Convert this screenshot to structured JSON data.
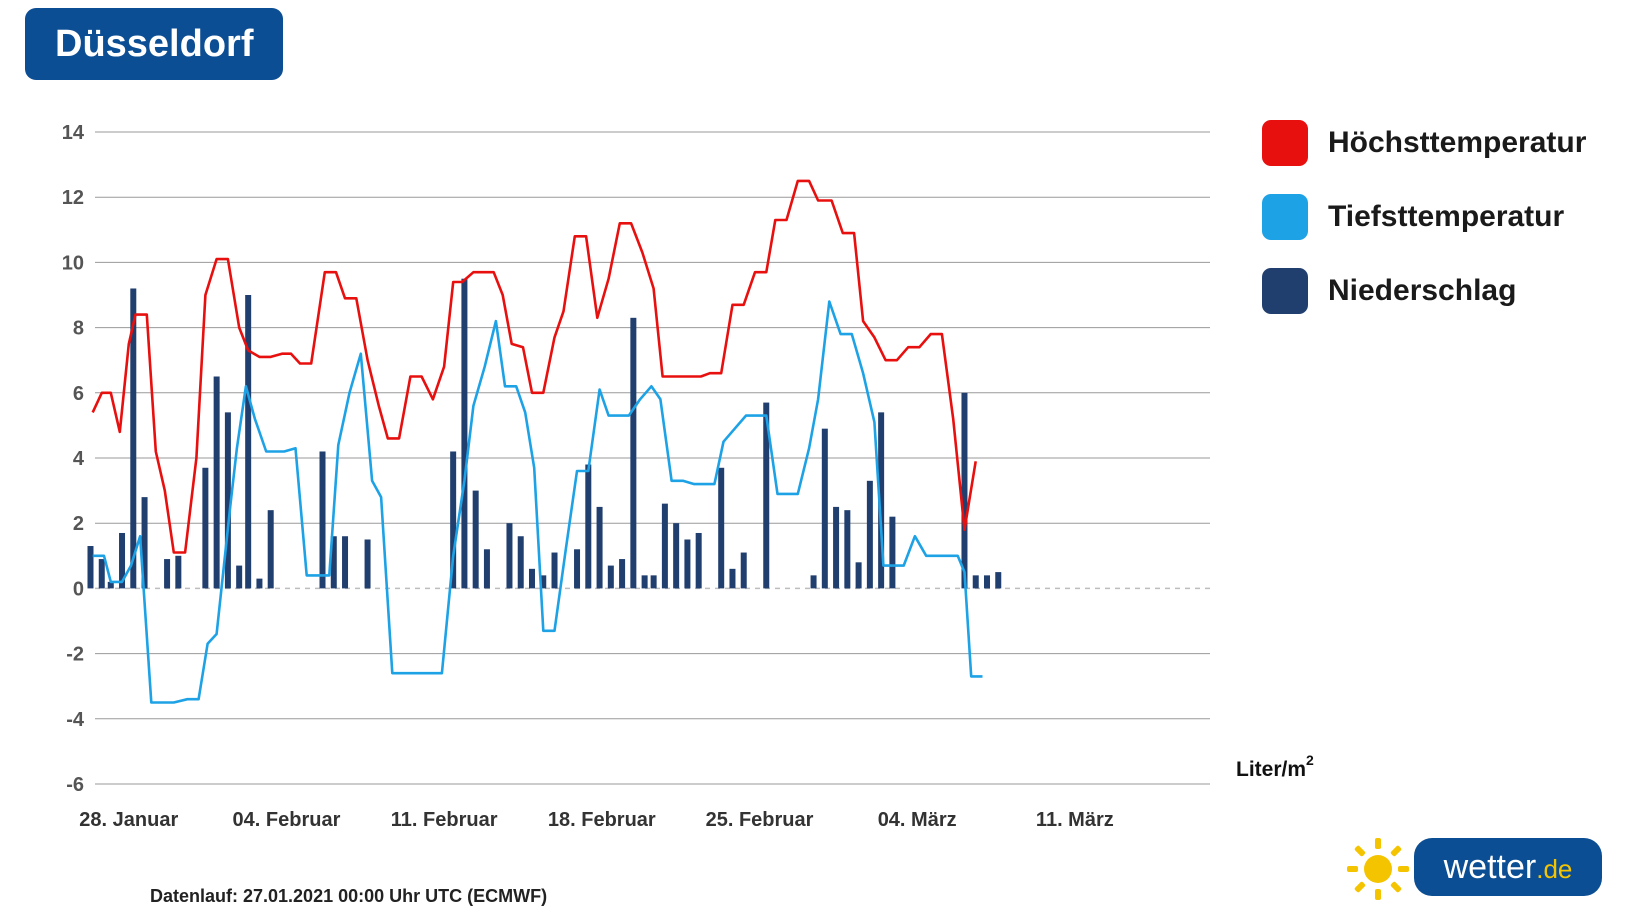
{
  "header": {
    "city": "Düsseldorf"
  },
  "legend": {
    "items": [
      {
        "label": "Höchsttemperatur",
        "color": "#e8100f"
      },
      {
        "label": "Tiefsttemperatur",
        "color": "#1ea2e6"
      },
      {
        "label": "Niederschlag",
        "color": "#213f6e"
      }
    ]
  },
  "footer": {
    "datenlauf": "Datenlauf: 27.01.2021 00:00 Uhr UTC (ECMWF)"
  },
  "logo": {
    "name": "wetter",
    "tld": ".de",
    "icon": "sun-icon"
  },
  "chart_data": {
    "type": "line",
    "y_ticks": [
      14,
      12,
      10,
      8,
      6,
      4,
      2,
      0,
      -2,
      -4,
      -6
    ],
    "ylim": [
      -6,
      14
    ],
    "xlim": [
      -1.5,
      48
    ],
    "x_ticks": [
      {
        "x": 0,
        "label": "28. Januar"
      },
      {
        "x": 7,
        "label": "04. Februar"
      },
      {
        "x": 14,
        "label": "11. Februar"
      },
      {
        "x": 21,
        "label": "18. Februar"
      },
      {
        "x": 28,
        "label": "25. Februar"
      },
      {
        "x": 35,
        "label": "04. März"
      },
      {
        "x": 42,
        "label": "11. März"
      }
    ],
    "precip_unit": "Liter/m",
    "precip_unit_sup": "2",
    "grid": true,
    "series": [
      {
        "name": "Höchsttemperatur",
        "color": "#e8100f",
        "points": [
          [
            -1.6,
            5.4
          ],
          [
            -1.2,
            6.0
          ],
          [
            -0.8,
            6.0
          ],
          [
            -0.4,
            4.8
          ],
          [
            0,
            7.5
          ],
          [
            0.3,
            8.4
          ],
          [
            0.8,
            8.4
          ],
          [
            1.2,
            4.2
          ],
          [
            1.6,
            3.0
          ],
          [
            2.0,
            1.1
          ],
          [
            2.5,
            1.1
          ],
          [
            3.0,
            4.0
          ],
          [
            3.4,
            9.0
          ],
          [
            3.9,
            10.1
          ],
          [
            4.4,
            10.1
          ],
          [
            4.9,
            8.0
          ],
          [
            5.3,
            7.3
          ],
          [
            5.8,
            7.1
          ],
          [
            6.3,
            7.1
          ],
          [
            6.8,
            7.2
          ],
          [
            7.2,
            7.2
          ],
          [
            7.6,
            6.9
          ],
          [
            8.1,
            6.9
          ],
          [
            8.7,
            9.7
          ],
          [
            9.2,
            9.7
          ],
          [
            9.6,
            8.9
          ],
          [
            10.1,
            8.9
          ],
          [
            10.6,
            7.0
          ],
          [
            11.1,
            5.6
          ],
          [
            11.5,
            4.6
          ],
          [
            12.0,
            4.6
          ],
          [
            12.5,
            6.5
          ],
          [
            13.0,
            6.5
          ],
          [
            13.5,
            5.8
          ],
          [
            14.0,
            6.8
          ],
          [
            14.4,
            9.4
          ],
          [
            14.8,
            9.4
          ],
          [
            15.3,
            9.7
          ],
          [
            16.2,
            9.7
          ],
          [
            16.6,
            9.0
          ],
          [
            17.0,
            7.5
          ],
          [
            17.5,
            7.4
          ],
          [
            17.9,
            6.0
          ],
          [
            18.4,
            6.0
          ],
          [
            18.9,
            7.7
          ],
          [
            19.3,
            8.5
          ],
          [
            19.8,
            10.8
          ],
          [
            20.3,
            10.8
          ],
          [
            20.8,
            8.3
          ],
          [
            21.3,
            9.5
          ],
          [
            21.8,
            11.2
          ],
          [
            22.3,
            11.2
          ],
          [
            22.8,
            10.3
          ],
          [
            23.3,
            9.2
          ],
          [
            23.7,
            6.5
          ],
          [
            24.1,
            6.5
          ],
          [
            25.4,
            6.5
          ],
          [
            25.8,
            6.6
          ],
          [
            26.3,
            6.6
          ],
          [
            26.8,
            8.7
          ],
          [
            27.3,
            8.7
          ],
          [
            27.8,
            9.7
          ],
          [
            28.3,
            9.7
          ],
          [
            28.7,
            11.3
          ],
          [
            29.2,
            11.3
          ],
          [
            29.7,
            12.5
          ],
          [
            30.2,
            12.5
          ],
          [
            30.6,
            11.9
          ],
          [
            31.2,
            11.9
          ],
          [
            31.7,
            10.9
          ],
          [
            32.2,
            10.9
          ],
          [
            32.6,
            8.2
          ],
          [
            33.1,
            7.7
          ],
          [
            33.6,
            7.0
          ],
          [
            34.1,
            7.0
          ],
          [
            34.6,
            7.4
          ],
          [
            35.1,
            7.4
          ],
          [
            35.6,
            7.8
          ],
          [
            36.1,
            7.8
          ],
          [
            36.6,
            5.2
          ],
          [
            37.1,
            1.8
          ],
          [
            37.6,
            3.9
          ]
        ]
      },
      {
        "name": "Tiefsttemperatur",
        "color": "#1ea2e6",
        "points": [
          [
            -1.6,
            1.0
          ],
          [
            -1.1,
            1.0
          ],
          [
            -0.8,
            0.2
          ],
          [
            -0.3,
            0.2
          ],
          [
            0.1,
            0.7
          ],
          [
            0.5,
            1.6
          ],
          [
            1.0,
            -3.5
          ],
          [
            2.0,
            -3.5
          ],
          [
            2.6,
            -3.4
          ],
          [
            3.1,
            -3.4
          ],
          [
            3.5,
            -1.7
          ],
          [
            3.9,
            -1.4
          ],
          [
            4.5,
            2.5
          ],
          [
            4.8,
            4.3
          ],
          [
            5.2,
            6.2
          ],
          [
            5.6,
            5.2
          ],
          [
            6.1,
            4.2
          ],
          [
            6.9,
            4.2
          ],
          [
            7.4,
            4.3
          ],
          [
            7.9,
            0.4
          ],
          [
            8.9,
            0.4
          ],
          [
            9.3,
            4.4
          ],
          [
            9.8,
            6.0
          ],
          [
            10.3,
            7.2
          ],
          [
            10.8,
            3.3
          ],
          [
            11.2,
            2.8
          ],
          [
            11.7,
            -2.6
          ],
          [
            13.9,
            -2.6
          ],
          [
            14.4,
            1.0
          ],
          [
            14.9,
            3.3
          ],
          [
            15.3,
            5.6
          ],
          [
            15.8,
            6.8
          ],
          [
            16.3,
            8.2
          ],
          [
            16.7,
            6.2
          ],
          [
            17.2,
            6.2
          ],
          [
            17.6,
            5.4
          ],
          [
            18.0,
            3.7
          ],
          [
            18.4,
            -1.3
          ],
          [
            18.9,
            -1.3
          ],
          [
            19.4,
            1.2
          ],
          [
            19.9,
            3.6
          ],
          [
            20.4,
            3.6
          ],
          [
            20.9,
            6.1
          ],
          [
            21.3,
            5.3
          ],
          [
            22.2,
            5.3
          ],
          [
            22.7,
            5.8
          ],
          [
            23.2,
            6.2
          ],
          [
            23.6,
            5.8
          ],
          [
            24.1,
            3.3
          ],
          [
            24.6,
            3.3
          ],
          [
            25.1,
            3.2
          ],
          [
            26.0,
            3.2
          ],
          [
            26.4,
            4.5
          ],
          [
            26.9,
            4.9
          ],
          [
            27.4,
            5.3
          ],
          [
            28.3,
            5.3
          ],
          [
            28.8,
            2.9
          ],
          [
            29.7,
            2.9
          ],
          [
            30.2,
            4.3
          ],
          [
            30.6,
            5.8
          ],
          [
            31.1,
            8.8
          ],
          [
            31.6,
            7.8
          ],
          [
            32.1,
            7.8
          ],
          [
            32.6,
            6.6
          ],
          [
            33.1,
            5.1
          ],
          [
            33.5,
            0.7
          ],
          [
            34.4,
            0.7
          ],
          [
            34.9,
            1.6
          ],
          [
            35.4,
            1.0
          ],
          [
            36.8,
            1.0
          ],
          [
            37.1,
            0.5
          ],
          [
            37.4,
            -2.7
          ],
          [
            37.9,
            -2.7
          ]
        ]
      }
    ],
    "precipitation": {
      "name": "Niederschlag",
      "color": "#213f6e",
      "values": [
        [
          -1.7,
          1.3
        ],
        [
          -1.2,
          0.9
        ],
        [
          -0.8,
          0.2
        ],
        [
          -0.3,
          1.7
        ],
        [
          0.2,
          9.2
        ],
        [
          0.7,
          2.8
        ],
        [
          1.7,
          0.9
        ],
        [
          2.2,
          1.0
        ],
        [
          3.4,
          3.7
        ],
        [
          3.9,
          6.5
        ],
        [
          4.4,
          5.4
        ],
        [
          4.9,
          0.7
        ],
        [
          5.3,
          9.0
        ],
        [
          5.8,
          0.3
        ],
        [
          6.3,
          2.4
        ],
        [
          8.6,
          4.2
        ],
        [
          9.1,
          1.6
        ],
        [
          9.6,
          1.6
        ],
        [
          10.6,
          1.5
        ],
        [
          14.4,
          4.2
        ],
        [
          14.9,
          9.5
        ],
        [
          15.4,
          3.0
        ],
        [
          15.9,
          1.2
        ],
        [
          16.9,
          2.0
        ],
        [
          17.4,
          1.6
        ],
        [
          17.9,
          0.6
        ],
        [
          18.4,
          0.4
        ],
        [
          18.9,
          1.1
        ],
        [
          19.9,
          1.2
        ],
        [
          20.4,
          3.8
        ],
        [
          20.9,
          2.5
        ],
        [
          21.4,
          0.7
        ],
        [
          21.9,
          0.9
        ],
        [
          22.4,
          8.3
        ],
        [
          22.9,
          0.4
        ],
        [
          23.3,
          0.4
        ],
        [
          23.8,
          2.6
        ],
        [
          24.3,
          2.0
        ],
        [
          24.8,
          1.5
        ],
        [
          25.3,
          1.7
        ],
        [
          26.3,
          3.7
        ],
        [
          26.8,
          0.6
        ],
        [
          27.3,
          1.1
        ],
        [
          28.3,
          5.7
        ],
        [
          30.4,
          0.4
        ],
        [
          30.9,
          4.9
        ],
        [
          31.4,
          2.5
        ],
        [
          31.9,
          2.4
        ],
        [
          32.4,
          0.8
        ],
        [
          32.9,
          3.3
        ],
        [
          33.4,
          5.4
        ],
        [
          33.9,
          2.2
        ],
        [
          37.1,
          6.0
        ],
        [
          37.6,
          0.4
        ],
        [
          38.1,
          0.4
        ],
        [
          38.6,
          0.5
        ]
      ]
    }
  }
}
